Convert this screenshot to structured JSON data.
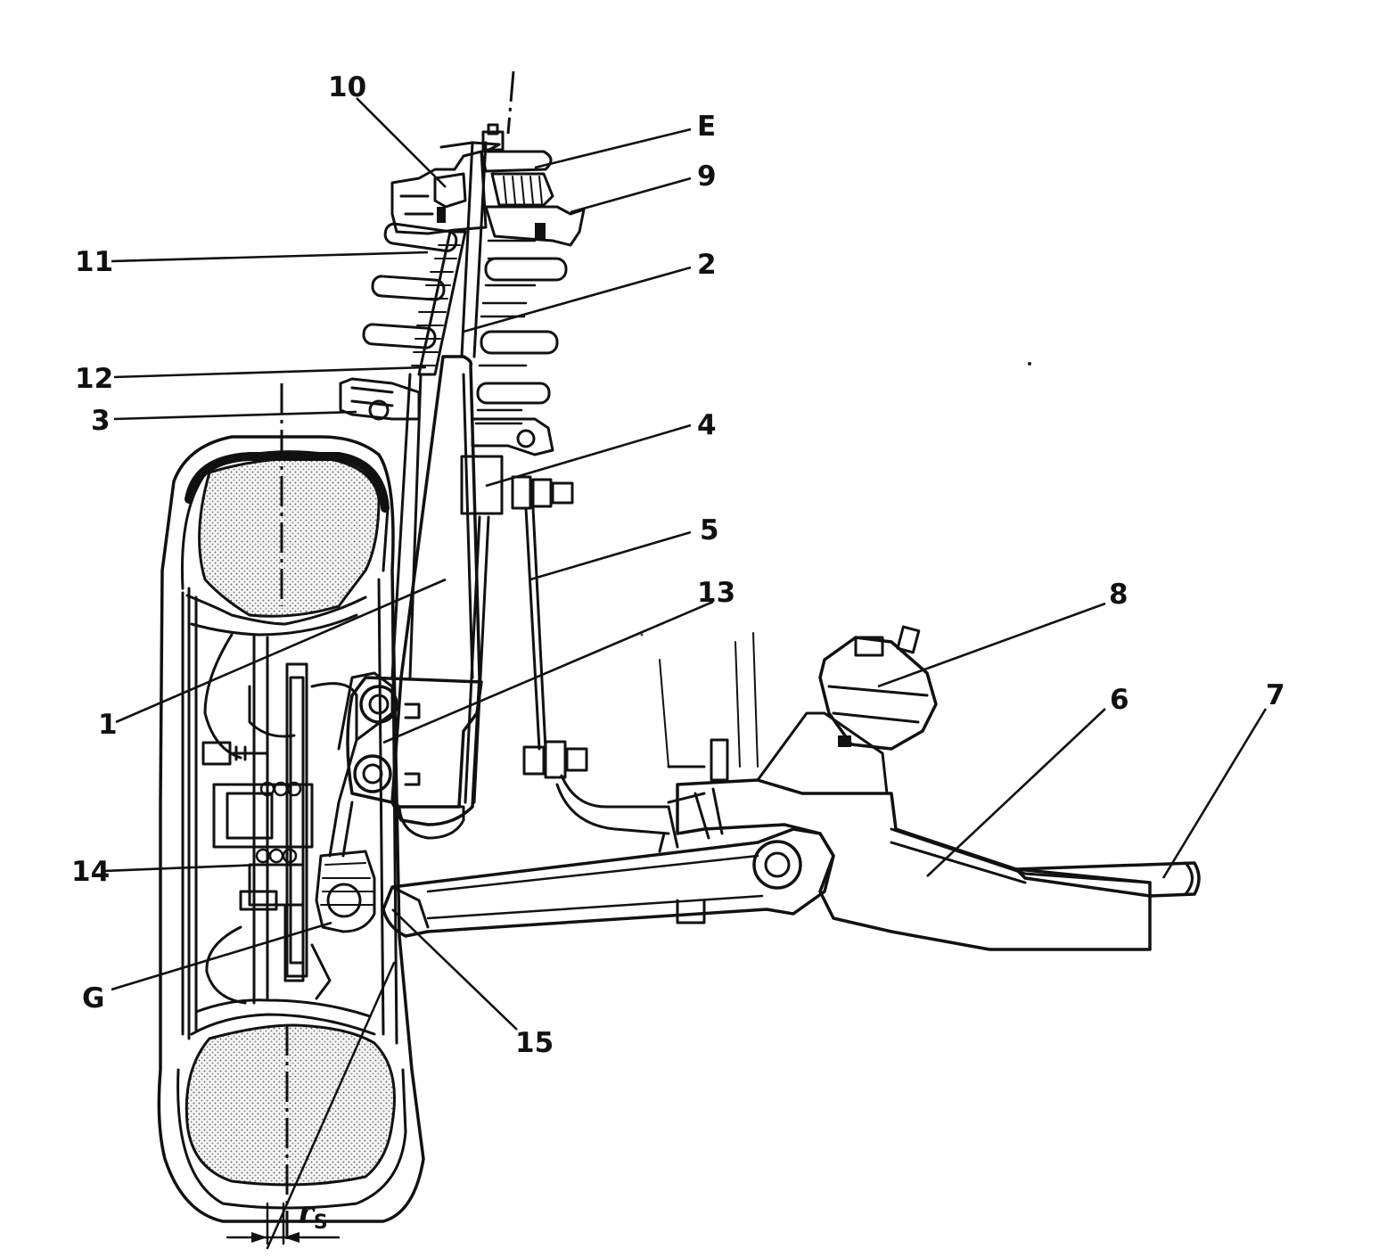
{
  "diagram": {
    "labels": {
      "l1": "1",
      "l2": "2",
      "l3": "3",
      "l4": "4",
      "l5": "5",
      "l6": "6",
      "l7": "7",
      "l8": "8",
      "l9": "9",
      "l10": "10",
      "l11": "11",
      "l12": "12",
      "l13": "13",
      "l14": "14",
      "l15": "15",
      "lE": "E",
      "lG": "G",
      "rs_r": "r",
      "rs_s": "S"
    }
  }
}
